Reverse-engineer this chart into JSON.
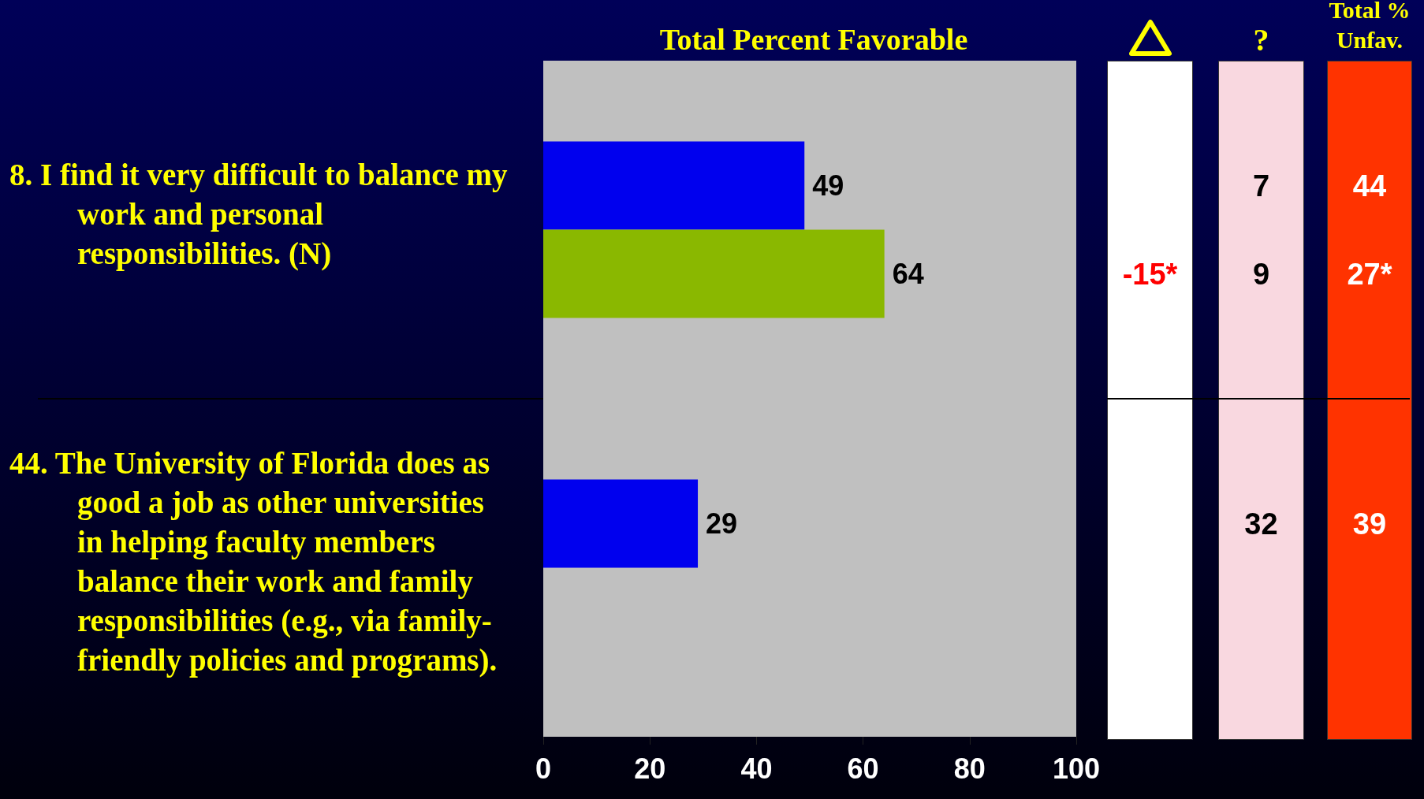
{
  "chart_data": [
    {
      "type": "bar",
      "orientation": "horizontal",
      "title": "Total Percent Favorable",
      "categories": [
        "8. I find it very difficult to balance my work and personal responsibilities. (N)",
        "44. The University of Florida does as good a job as other universities in helping faculty members balance their work and family responsibilities (e.g., via family-friendly policies and programs)."
      ],
      "series": [
        {
          "color": "#0000ee",
          "values": [
            49,
            29
          ]
        },
        {
          "color": "#8ab800",
          "values": [
            64,
            null
          ]
        }
      ],
      "xlim": [
        0,
        100
      ],
      "xticks": [
        0,
        20,
        40,
        60,
        80,
        100
      ],
      "data_labels": true
    },
    {
      "type": "other",
      "color": "#ff0000",
      "values": [
        null,
        -15,
        null
      ],
      "value_labels": [
        null,
        "-15*",
        null
      ]
    },
    {
      "type": "other",
      "title": "?",
      "color": "#000000",
      "values": [
        7,
        9,
        32
      ],
      "data_labels": true
    },
    {
      "type": "other",
      "title": "Total % Unfav.",
      "color": "#ffffff",
      "values": [
        44,
        27,
        39
      ],
      "value_labels": [
        "44",
        "27*",
        "39"
      ]
    }
  ]
}
